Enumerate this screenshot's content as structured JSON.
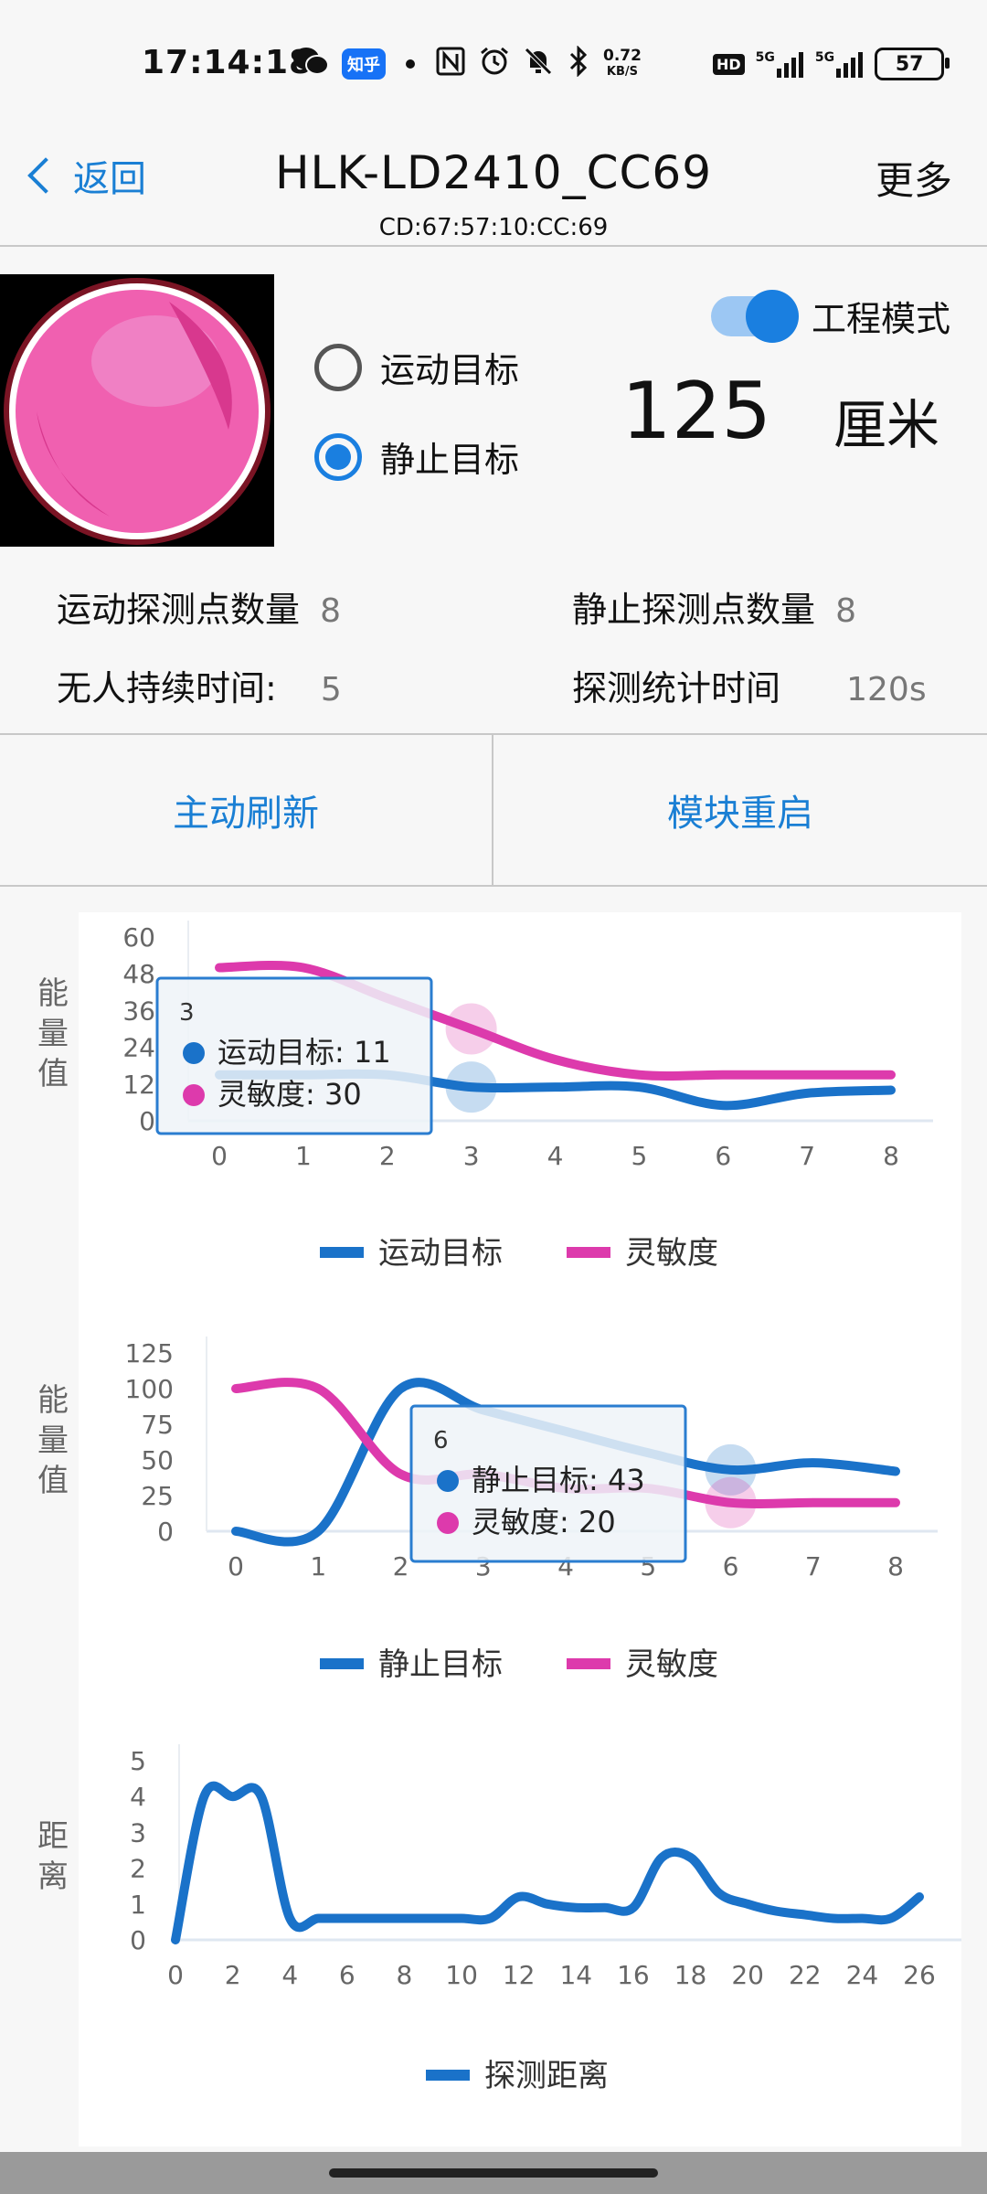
{
  "status_bar": {
    "time": "17:14:18",
    "app_badge": "知乎",
    "net_speed_top": "0.72",
    "net_speed_bottom": "KB/S",
    "hd": "HD",
    "signal1": "5G",
    "signal2": "5G",
    "battery": "57"
  },
  "nav": {
    "back_label": "返回",
    "title": "HLK-LD2410_CC69",
    "subtitle": "CD:67:57:10:CC:69",
    "more_label": "更多"
  },
  "target": {
    "option_motion": "运动目标",
    "option_static": "静止目标",
    "selected": "静止目标",
    "engineering_mode_label": "工程模式",
    "engineering_mode_on": true,
    "distance_value": "125",
    "distance_unit": "厘米"
  },
  "stats": {
    "motion_points_label": "运动探测点数量",
    "motion_points_value": "8",
    "static_points_label": "静止探测点数量",
    "static_points_value": "8",
    "no_one_duration_label": "无人持续时间:",
    "no_one_duration_value": "5",
    "stat_time_label": "探测统计时间",
    "stat_time_value": "120s"
  },
  "actions": {
    "refresh_label": "主动刷新",
    "restart_label": "模块重启"
  },
  "colors": {
    "accent": "#1a7fd4",
    "series_blue": "#1a72c9",
    "series_pink": "#dd3aac"
  },
  "chart_data": [
    {
      "type": "line",
      "ylabel": "能量值",
      "ylim": [
        0,
        60
      ],
      "yticks": [
        "0",
        "12",
        "24",
        "36",
        "48",
        "60"
      ],
      "x": [
        "0",
        "1",
        "2",
        "3",
        "4",
        "5",
        "6",
        "7",
        "8"
      ],
      "series": [
        {
          "name": "运动目标",
          "values": [
            15,
            15,
            15,
            11,
            11,
            11,
            5,
            9,
            10
          ]
        },
        {
          "name": "灵敏度",
          "values": [
            50,
            50,
            40,
            30,
            20,
            15,
            15,
            15,
            15
          ]
        }
      ],
      "legend": "bottom",
      "tooltip": {
        "title": "3",
        "lines": [
          "运动目标: 11",
          "灵敏度: 30"
        ],
        "x_index": 3
      }
    },
    {
      "type": "line",
      "ylabel": "能量值",
      "ylim": [
        0,
        125
      ],
      "yticks": [
        "0",
        "25",
        "50",
        "75",
        "100",
        "125"
      ],
      "x": [
        "0",
        "1",
        "2",
        "3",
        "4",
        "5",
        "6",
        "7",
        "8"
      ],
      "series": [
        {
          "name": "静止目标",
          "values": [
            0,
            0,
            100,
            85,
            70,
            55,
            43,
            48,
            42
          ]
        },
        {
          "name": "灵敏度",
          "values": [
            100,
            100,
            40,
            40,
            30,
            30,
            20,
            20,
            20
          ]
        }
      ],
      "legend": "bottom",
      "tooltip": {
        "title": "6",
        "lines": [
          "静止目标: 43",
          "灵敏度: 20"
        ],
        "x_index": 6
      }
    },
    {
      "type": "line",
      "ylabel": "距离",
      "ylim": [
        0,
        5
      ],
      "yticks": [
        "0",
        "1",
        "2",
        "3",
        "4",
        "5"
      ],
      "x": [
        0,
        1,
        2,
        3,
        4,
        5,
        6,
        7,
        8,
        9,
        10,
        11,
        12,
        13,
        14,
        15,
        16,
        17,
        18,
        19,
        20,
        21,
        22,
        23,
        24,
        25,
        26
      ],
      "xticks": [
        "0",
        "2",
        "4",
        "6",
        "8",
        "10",
        "12",
        "14",
        "16",
        "18",
        "20",
        "22",
        "24",
        "26"
      ],
      "series": [
        {
          "name": "探测距离",
          "values": [
            0,
            4,
            4,
            4,
            0.6,
            0.6,
            0.6,
            0.6,
            0.6,
            0.6,
            0.6,
            0.6,
            1.2,
            1,
            0.9,
            0.9,
            0.9,
            2.3,
            2.3,
            1.3,
            1,
            0.8,
            0.7,
            0.6,
            0.6,
            0.6,
            1.2
          ]
        }
      ],
      "legend": "bottom"
    }
  ]
}
